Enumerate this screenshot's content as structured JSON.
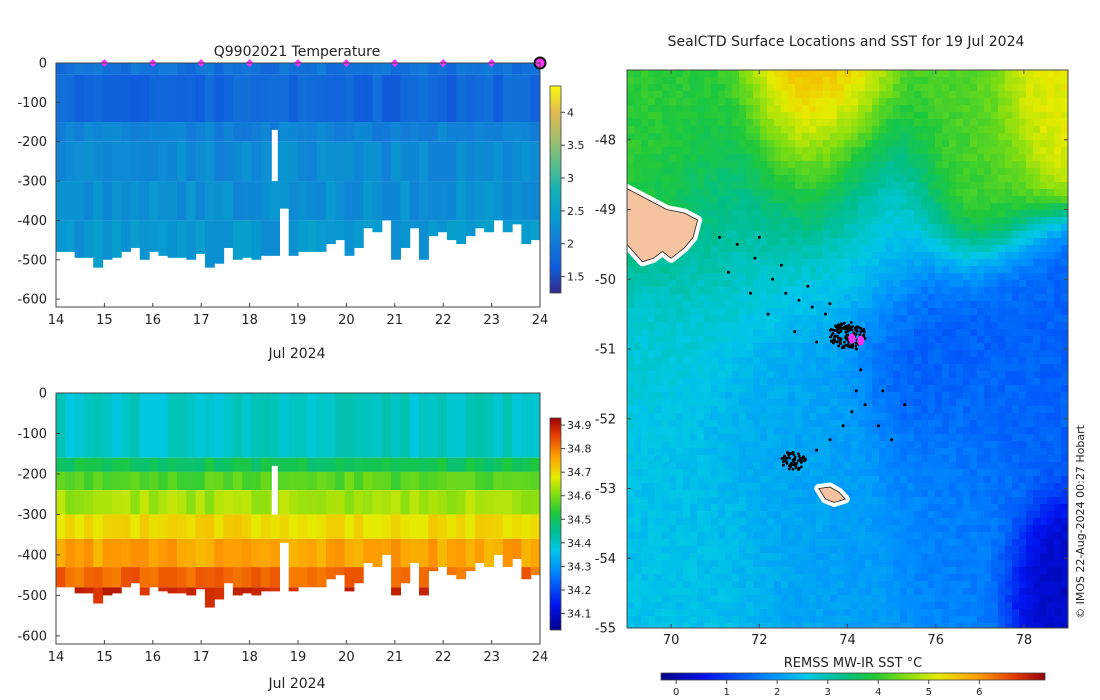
{
  "chart_data": [
    {
      "type": "heatmap",
      "panel": "temperature-section",
      "title": "Q9902021  Temperature",
      "xlabel": "Jul 2024",
      "ylabel": "",
      "xlim": [
        14,
        24
      ],
      "ylim": [
        -620,
        0
      ],
      "x_ticks": [
        "14",
        "15",
        "16",
        "17",
        "18",
        "19",
        "20",
        "21",
        "22",
        "23",
        "24"
      ],
      "y_ticks": [
        "0",
        "-100",
        "-200",
        "-300",
        "-400",
        "-500",
        "-600"
      ],
      "colorbar": {
        "min": 1.25,
        "max": 4.4,
        "ticks": [
          "1.5",
          "2",
          "2.5",
          "3",
          "3.5",
          "4"
        ]
      },
      "surface_marker_days": [
        15,
        16,
        17,
        18,
        19,
        20,
        21,
        22,
        23
      ],
      "latest_profile_day": 24,
      "layers": [
        {
          "top": 0,
          "bottom": -30,
          "value": 1.9
        },
        {
          "top": -30,
          "bottom": -150,
          "value": 1.75
        },
        {
          "top": -150,
          "bottom": -200,
          "value": 2.1
        },
        {
          "top": -200,
          "bottom": -300,
          "value": 2.2
        },
        {
          "top": -300,
          "bottom": -400,
          "value": 2.25
        },
        {
          "top": -400,
          "bottom": -520,
          "value": 2.35
        }
      ],
      "profile_depths": [
        -480,
        -480,
        -495,
        -495,
        -520,
        -500,
        -495,
        -480,
        -470,
        -500,
        -480,
        -490,
        -495,
        -495,
        -500,
        -485,
        -530,
        -510,
        -470,
        -500,
        -495,
        -500,
        -490,
        -490,
        -370,
        -490,
        -480,
        -480,
        -480,
        -460,
        -450,
        -490,
        -470,
        -420,
        -430,
        -400,
        -500,
        -470,
        -420,
        -500,
        -440,
        -430,
        -450,
        -460,
        -440,
        -420,
        -430,
        -400,
        -430,
        -410,
        -460,
        -450
      ]
    },
    {
      "type": "heatmap",
      "panel": "salinity-section",
      "title": "",
      "xlabel": "Jul 2024",
      "ylabel": "",
      "xlim": [
        14,
        24
      ],
      "ylim": [
        -620,
        0
      ],
      "x_ticks": [
        "14",
        "15",
        "16",
        "17",
        "18",
        "19",
        "20",
        "21",
        "22",
        "23",
        "24"
      ],
      "y_ticks": [
        "0",
        "-100",
        "-200",
        "-300",
        "-400",
        "-500",
        "-600"
      ],
      "colorbar": {
        "min": 34.03,
        "max": 34.93,
        "ticks": [
          "34.1",
          "34.2",
          "34.3",
          "34.4",
          "34.5",
          "34.6",
          "34.7",
          "34.8",
          "34.9"
        ]
      },
      "layers": [
        {
          "top": 0,
          "bottom": -160,
          "value": 34.4
        },
        {
          "top": -160,
          "bottom": -195,
          "value": 34.5
        },
        {
          "top": -195,
          "bottom": -240,
          "value": 34.57
        },
        {
          "top": -240,
          "bottom": -300,
          "value": 34.63
        },
        {
          "top": -300,
          "bottom": -360,
          "value": 34.7
        },
        {
          "top": -360,
          "bottom": -430,
          "value": 34.76
        },
        {
          "top": -430,
          "bottom": -480,
          "value": 34.82
        },
        {
          "top": -480,
          "bottom": -540,
          "value": 34.88
        }
      ]
    },
    {
      "type": "heatmap",
      "panel": "sst-map",
      "title": "SealCTD Surface Locations and SST for 19 Jul 2024",
      "xlabel": "",
      "ylabel": "",
      "xlim": [
        69,
        79
      ],
      "ylim": [
        -55,
        -47.0
      ],
      "x_ticks": [
        "70",
        "72",
        "74",
        "76",
        "78"
      ],
      "y_ticks": [
        "-48",
        "-49",
        "-50",
        "-51",
        "-52",
        "-53",
        "-54",
        "-55"
      ],
      "colorbar_label": "REMSS MW-IR SST °C",
      "colorbar": {
        "min": -0.3,
        "max": 7.3,
        "ticks": [
          "0",
          "1",
          "2",
          "3",
          "4",
          "5",
          "6"
        ]
      },
      "blobs": [
        {
          "lon": 73.3,
          "lat": -47.2,
          "value": 6.4,
          "r": 1.1
        },
        {
          "lon": 73.4,
          "lat": -48.0,
          "value": 4.5,
          "r": 1.4
        },
        {
          "lon": 70.0,
          "lat": -48.0,
          "value": 4.0,
          "r": 1.6
        },
        {
          "lon": 78.5,
          "lat": -47.3,
          "value": 5.2,
          "r": 0.9
        },
        {
          "lon": 76.7,
          "lat": -48.0,
          "value": 4.2,
          "r": 1.2
        },
        {
          "lon": 71.5,
          "lat": -49.5,
          "value": 3.1,
          "r": 1.5
        },
        {
          "lon": 74.5,
          "lat": -49.2,
          "value": 2.4,
          "r": 1.3
        },
        {
          "lon": 72.5,
          "lat": -51.4,
          "value": 2.1,
          "r": 1.8
        },
        {
          "lon": 75.5,
          "lat": -51.0,
          "value": 1.3,
          "r": 1.1
        },
        {
          "lon": 77.8,
          "lat": -51.5,
          "value": 1.4,
          "r": 1.4
        },
        {
          "lon": 78.7,
          "lat": -54.2,
          "value": 0.2,
          "r": 0.8
        },
        {
          "lon": 70.5,
          "lat": -53.6,
          "value": 2.5,
          "r": 1.7
        },
        {
          "lon": 73.5,
          "lat": -53.8,
          "value": 2.1,
          "r": 1.5
        },
        {
          "lon": 76.3,
          "lat": -53.3,
          "value": 1.7,
          "r": 1.4
        },
        {
          "lon": 70.0,
          "lat": -51.0,
          "value": 2.7,
          "r": 1.3
        }
      ],
      "track": [
        [
          71.1,
          -49.4
        ],
        [
          71.5,
          -49.5
        ],
        [
          71.9,
          -49.7
        ],
        [
          72.3,
          -50.0
        ],
        [
          72.6,
          -50.2
        ],
        [
          72.9,
          -50.3
        ],
        [
          73.2,
          -50.4
        ],
        [
          73.5,
          -50.5
        ],
        [
          73.8,
          -50.7
        ],
        [
          74.0,
          -50.8
        ],
        [
          74.2,
          -51.0
        ],
        [
          74.3,
          -51.3
        ],
        [
          74.2,
          -51.6
        ],
        [
          74.1,
          -51.9
        ],
        [
          73.9,
          -52.1
        ],
        [
          73.6,
          -52.3
        ],
        [
          73.3,
          -52.45
        ],
        [
          73.0,
          -52.55
        ],
        [
          71.3,
          -49.9
        ],
        [
          71.8,
          -50.2
        ],
        [
          72.2,
          -50.5
        ],
        [
          72.8,
          -50.75
        ],
        [
          73.3,
          -50.9
        ],
        [
          73.8,
          -50.85
        ],
        [
          72.0,
          -49.4
        ],
        [
          72.5,
          -49.8
        ],
        [
          73.1,
          -50.1
        ],
        [
          73.6,
          -50.35
        ],
        [
          74.4,
          -51.8
        ],
        [
          74.7,
          -52.1
        ],
        [
          75.0,
          -52.3
        ],
        [
          74.8,
          -51.6
        ],
        [
          75.3,
          -51.8
        ]
      ],
      "clusters": [
        {
          "lon": 74.0,
          "lat": -50.8,
          "spread": 0.35,
          "count": 140
        },
        {
          "lon": 72.8,
          "lat": -52.6,
          "spread": 0.25,
          "count": 60
        }
      ],
      "recent_positions": [
        [
          74.1,
          -50.85
        ],
        [
          74.3,
          -50.88
        ]
      ],
      "islands": [
        {
          "name": "kerguelen",
          "points": [
            [
              69.0,
              -48.7
            ],
            [
              69.6,
              -48.9
            ],
            [
              69.9,
              -49.0
            ],
            [
              70.3,
              -49.05
            ],
            [
              70.6,
              -49.15
            ],
            [
              70.5,
              -49.4
            ],
            [
              70.3,
              -49.55
            ],
            [
              70.0,
              -49.7
            ],
            [
              69.8,
              -49.6
            ],
            [
              69.6,
              -49.7
            ],
            [
              69.35,
              -49.75
            ],
            [
              69.0,
              -49.5
            ]
          ]
        },
        {
          "name": "heard",
          "points": [
            [
              73.35,
              -53.0
            ],
            [
              73.6,
              -52.98
            ],
            [
              73.8,
              -53.05
            ],
            [
              73.95,
              -53.15
            ],
            [
              73.7,
              -53.2
            ],
            [
              73.5,
              -53.15
            ]
          ]
        }
      ]
    }
  ],
  "footer": {
    "credit": "© IMOS 22-Aug-2024 00:27 Hobart"
  }
}
